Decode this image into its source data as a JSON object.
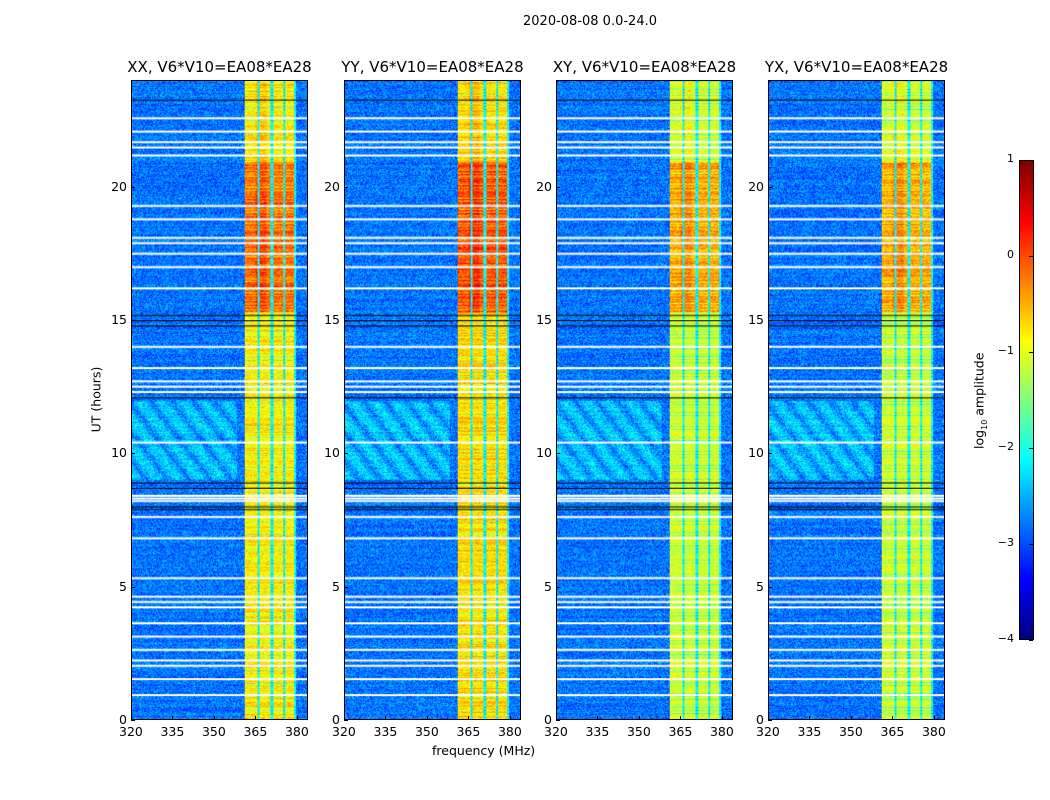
{
  "chart_data": {
    "type": "heatmap",
    "title": "2020-08-08 0.0-24.0",
    "xlabel": "frequency (MHz)",
    "ylabel": "UT (hours)",
    "xlim": [
      320,
      384
    ],
    "ylim": [
      0,
      24
    ],
    "xticks": [
      "320",
      "335",
      "350",
      "365",
      "380"
    ],
    "yticks": [
      "0",
      "5",
      "10",
      "15",
      "20"
    ],
    "panels": [
      {
        "title": "XX, V6*V10=EA08*EA28",
        "hot_level": 0.0
      },
      {
        "title": "YY, V6*V10=EA08*EA28",
        "hot_level": 0.1
      },
      {
        "title": "XY, V6*V10=EA08*EA28",
        "hot_level": -0.3
      },
      {
        "title": "YX, V6*V10=EA08*EA28",
        "hot_level": -0.3
      }
    ],
    "rfi_band_mhz": [
      361,
      380
    ],
    "rfi_subband_edges_mhz": [
      366,
      371,
      375.5,
      379.5
    ],
    "flagged_hours_white": [
      0.9,
      1.5,
      2.0,
      2.2,
      2.6,
      3.1,
      3.6,
      4.2,
      4.4,
      4.6,
      5.3,
      6.8,
      7.6,
      8.2,
      8.3,
      8.4,
      10.4,
      12.3,
      12.5,
      12.7,
      13.2,
      14.0,
      16.2,
      17.0,
      17.5,
      17.9,
      18.1,
      18.8,
      19.3,
      21.2,
      21.5,
      21.7,
      22.1,
      22.6
    ],
    "flagged_hours_black": [
      7.9,
      8.0,
      8.7,
      8.9,
      12.1,
      14.8,
      15.0,
      15.2,
      23.3
    ],
    "colorbar": {
      "label": "log10 amplitude",
      "range": [
        -4,
        1
      ],
      "ticks": [
        "1",
        "0",
        "−1",
        "−2",
        "−3",
        "−4"
      ],
      "colormap": "jet"
    }
  }
}
